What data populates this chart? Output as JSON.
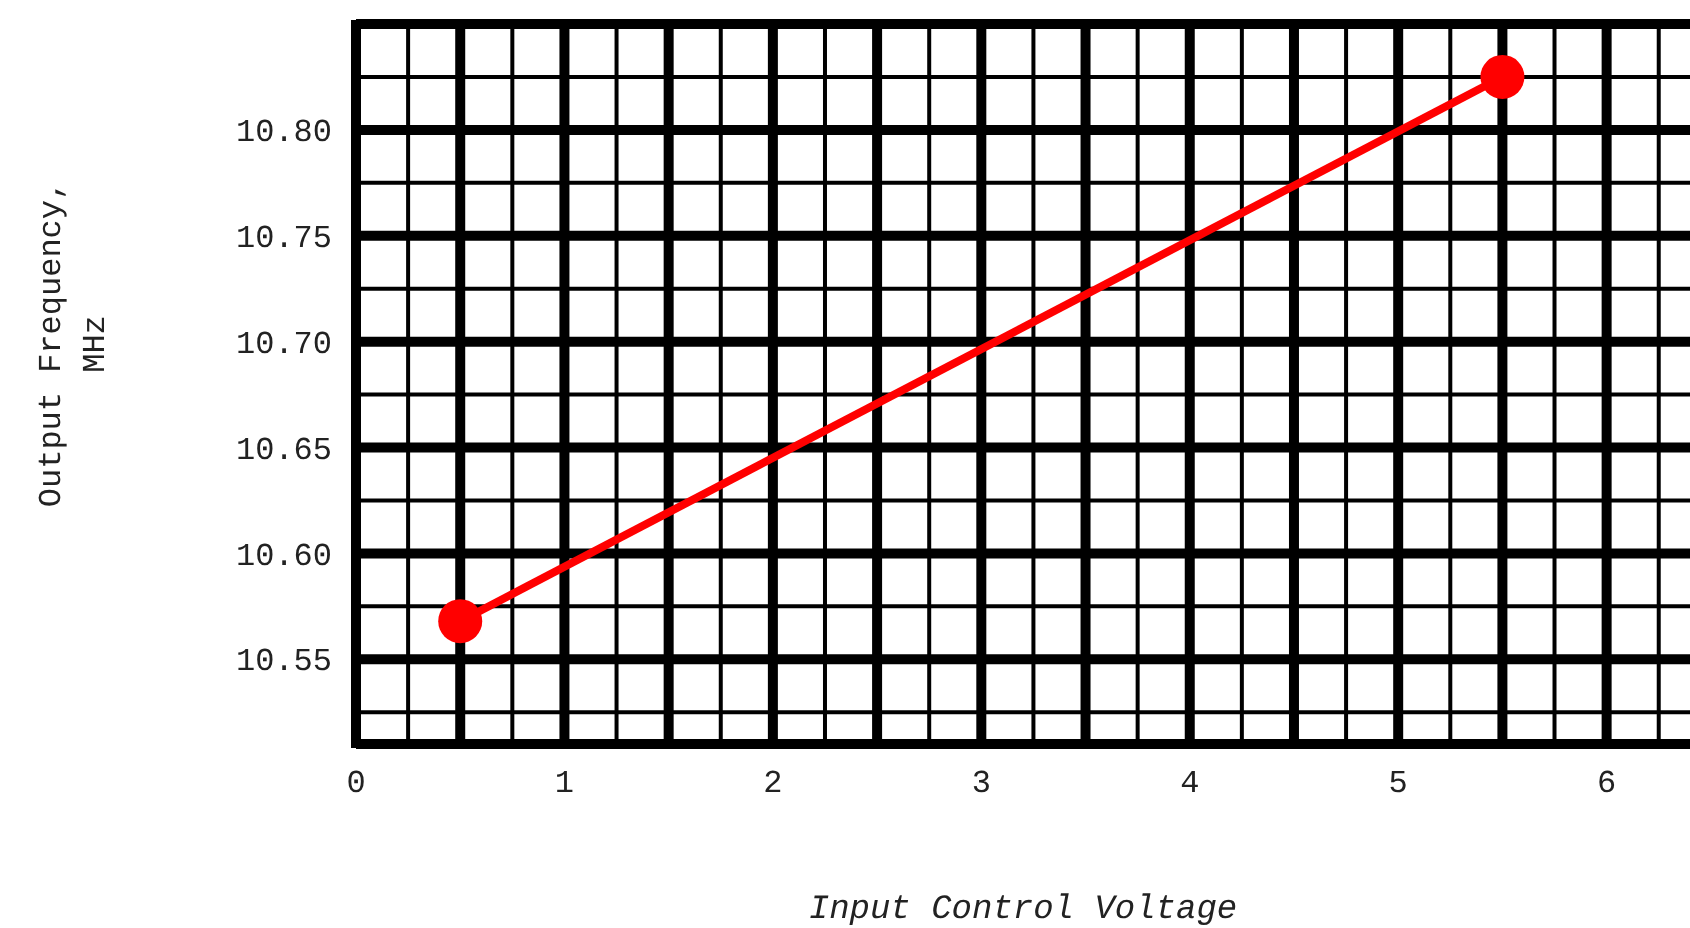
{
  "chart_data": {
    "type": "line",
    "xlabel": "Input Control Voltage",
    "ylabel": "Output Frequency, MHz",
    "x": [
      0.5,
      5.5
    ],
    "series": [
      {
        "color": "#ff0000",
        "values": [
          10.568,
          10.825
        ]
      }
    ],
    "marker": "circle",
    "grid": true,
    "xlim": [
      0,
      6.4
    ],
    "xticks": [
      0,
      {
        "value": 0.25,
        "label": null
      },
      {
        "value": 0.5,
        "label": null
      },
      {
        "value": 0.75,
        "label": null
      },
      1,
      {
        "value": 1.25,
        "label": null
      },
      {
        "value": 1.5,
        "label": null
      },
      {
        "value": 1.75,
        "label": null
      },
      2,
      {
        "value": 2.25,
        "label": null
      },
      {
        "value": 2.5,
        "label": null
      },
      {
        "value": 2.75,
        "label": null
      },
      3,
      {
        "value": 3.25,
        "label": null
      },
      {
        "value": 3.5,
        "label": null
      },
      {
        "value": 3.75,
        "label": null
      },
      4,
      {
        "value": 4.25,
        "label": null
      },
      {
        "value": 4.5,
        "label": null
      },
      {
        "value": 4.75,
        "label": null
      },
      5,
      {
        "value": 5.25,
        "label": null
      },
      {
        "value": 5.5,
        "label": null
      },
      {
        "value": 5.75,
        "label": null
      },
      6,
      {
        "value": 6.25,
        "label": null
      }
    ],
    "ylim": [
      10.51,
      10.85
    ],
    "yticks": [
      {
        "value": 10.525,
        "label": null
      },
      {
        "value": 10.55,
        "label": "10.55"
      },
      {
        "value": 10.575,
        "label": null
      },
      {
        "value": 10.6,
        "label": "10.60"
      },
      {
        "value": 10.625,
        "label": null
      },
      {
        "value": 10.65,
        "label": "10.65"
      },
      {
        "value": 10.675,
        "label": null
      },
      {
        "value": 10.7,
        "label": "10.70"
      },
      {
        "value": 10.725,
        "label": null
      },
      {
        "value": 10.75,
        "label": "10.75"
      },
      {
        "value": 10.775,
        "label": null
      },
      {
        "value": 10.8,
        "label": "10.80"
      },
      {
        "value": 10.825,
        "label": null
      },
      {
        "value": 10.85,
        "label": null
      }
    ]
  }
}
